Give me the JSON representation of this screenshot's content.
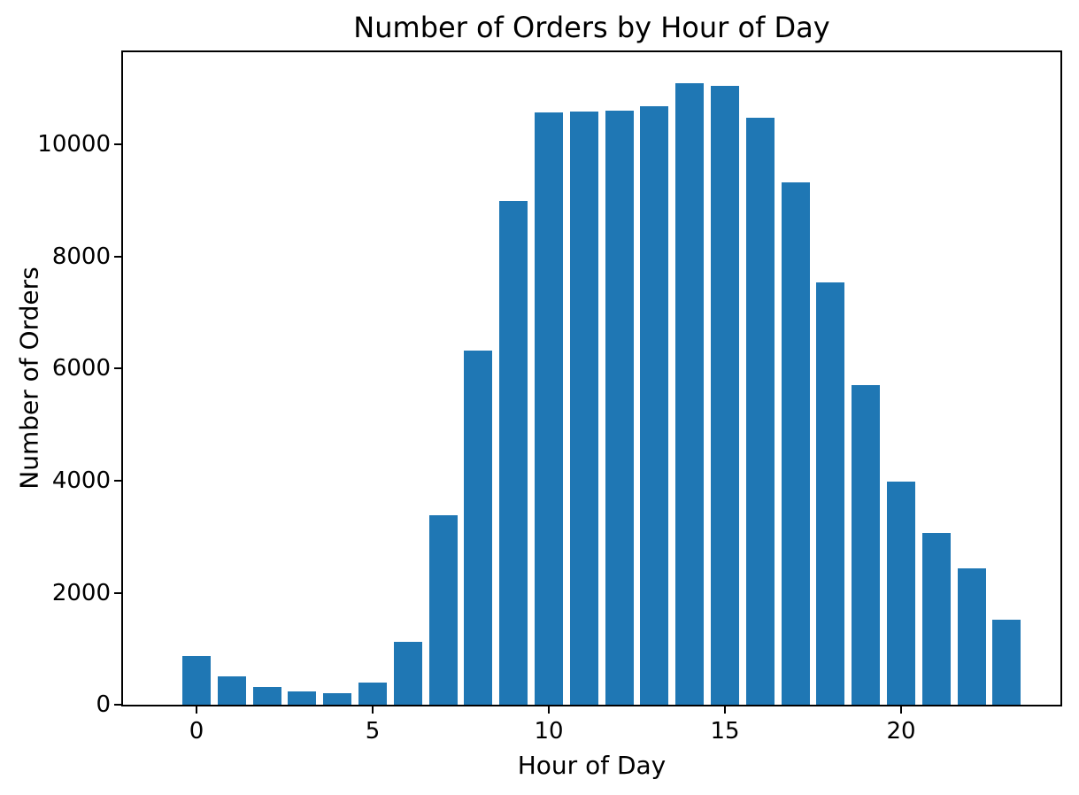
{
  "chart_data": {
    "type": "bar",
    "title": "Number of Orders by Hour of Day",
    "xlabel": "Hour of Day",
    "ylabel": "Number of Orders",
    "categories": [
      0,
      1,
      2,
      3,
      4,
      5,
      6,
      7,
      8,
      9,
      10,
      11,
      12,
      13,
      14,
      15,
      16,
      17,
      18,
      19,
      20,
      21,
      22,
      23
    ],
    "values": [
      865,
      510,
      310,
      230,
      205,
      400,
      1120,
      3380,
      6330,
      9000,
      10570,
      10590,
      10600,
      10690,
      11090,
      11050,
      10480,
      9330,
      7540,
      5710,
      3980,
      3060,
      2440,
      1520
    ],
    "x_tick_values": [
      0,
      5,
      10,
      15,
      20
    ],
    "x_tick_labels": [
      "0",
      "5",
      "10",
      "15",
      "20"
    ],
    "y_tick_values": [
      0,
      2000,
      4000,
      6000,
      8000,
      10000
    ],
    "y_tick_labels": [
      "0",
      "2000",
      "4000",
      "6000",
      "8000",
      "10000"
    ],
    "ylim": [
      0,
      11650
    ],
    "grid": false,
    "legend_position": "none",
    "bar_color": "#1f77b4",
    "axis_color": "#000000",
    "background_color": "#ffffff"
  }
}
